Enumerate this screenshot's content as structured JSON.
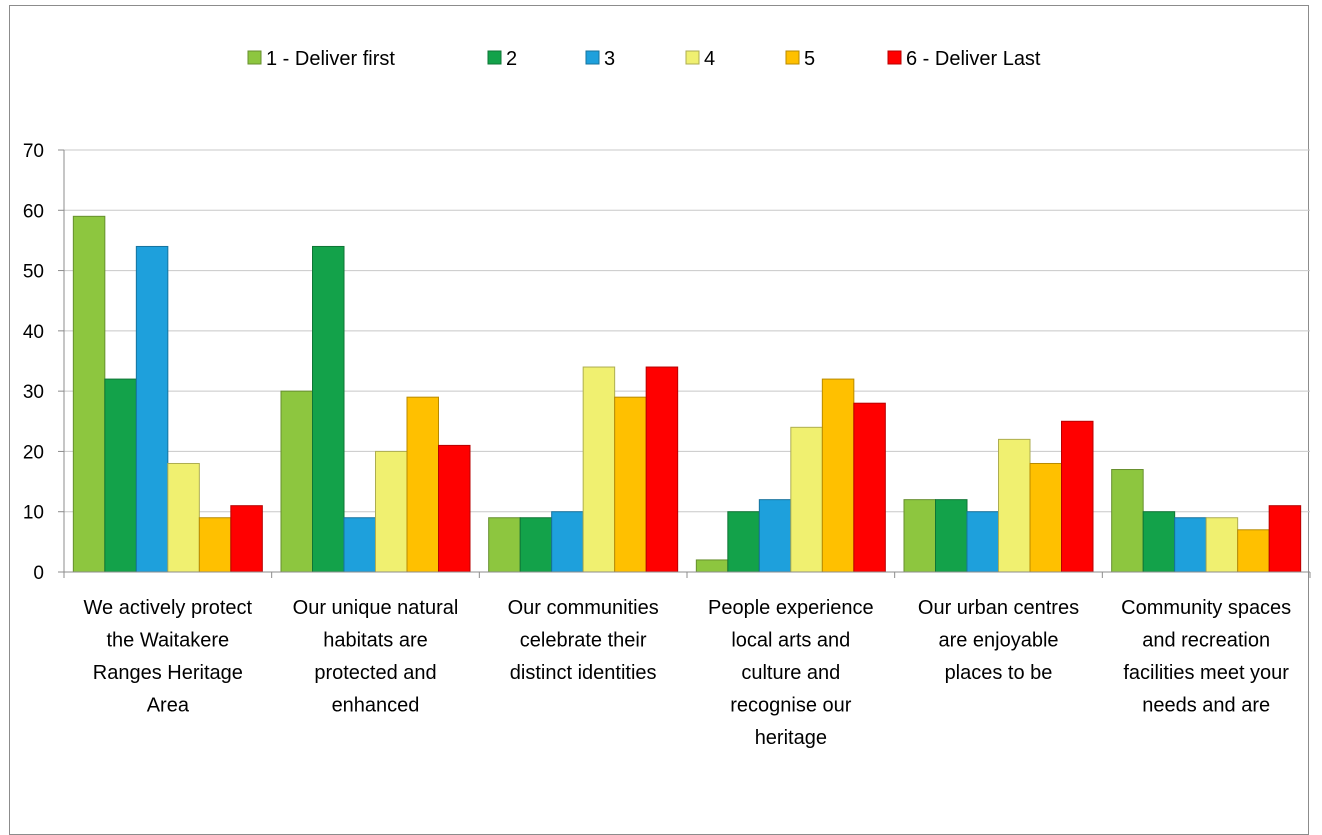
{
  "chart_data": {
    "type": "bar",
    "title": "",
    "xlabel": "",
    "ylabel": "",
    "ylim": [
      0,
      70
    ],
    "yticks": [
      0,
      10,
      20,
      30,
      40,
      50,
      60,
      70
    ],
    "grid": true,
    "legend_position": "top",
    "categories": [
      [
        "We actively protect",
        "the Waitakere",
        "Ranges Heritage",
        "Area"
      ],
      [
        "Our unique natural",
        "habitats are",
        "protected and",
        "enhanced"
      ],
      [
        "Our communities",
        "celebrate their",
        "distinct identities"
      ],
      [
        "People experience",
        "local arts and",
        "culture and",
        "recognise our",
        "heritage"
      ],
      [
        "Our urban centres",
        "are enjoyable",
        "places to be"
      ],
      [
        "Community spaces",
        "and recreation",
        "facilities meet your",
        "needs and are"
      ]
    ],
    "series": [
      {
        "name": "1 - Deliver first",
        "color": "#8dc63f",
        "values": [
          59,
          30,
          9,
          2,
          12,
          17
        ]
      },
      {
        "name": "2",
        "color": "#13a24a",
        "values": [
          32,
          54,
          9,
          10,
          12,
          10
        ]
      },
      {
        "name": "3",
        "color": "#1ea0dc",
        "values": [
          54,
          9,
          10,
          12,
          10,
          9
        ]
      },
      {
        "name": "4",
        "color": "#f0f070",
        "values": [
          18,
          20,
          34,
          24,
          22,
          9
        ]
      },
      {
        "name": "5",
        "color": "#ffc000",
        "values": [
          9,
          29,
          29,
          32,
          18,
          7
        ]
      },
      {
        "name": "6 - Deliver Last",
        "color": "#ff0000",
        "values": [
          11,
          21,
          34,
          28,
          25,
          11
        ]
      }
    ]
  }
}
